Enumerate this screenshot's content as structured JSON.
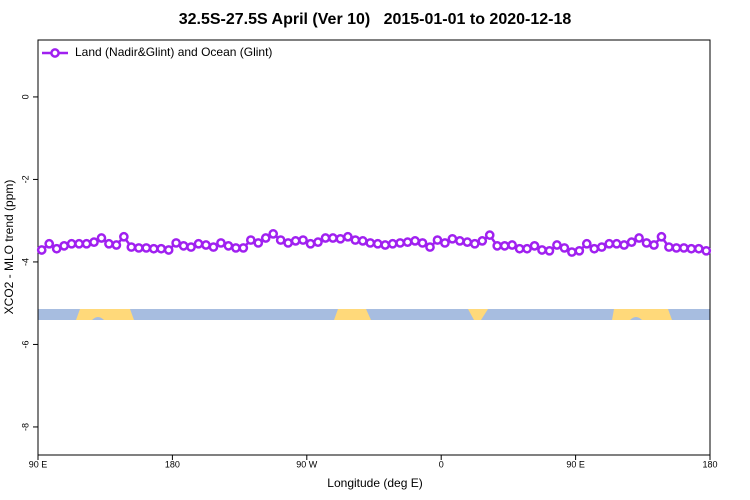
{
  "chart_data": {
    "type": "line",
    "title": "32.5S-27.5S April (Ver 10)   2015-01-01 to 2020-12-18",
    "xlabel": "Longitude (deg E)",
    "ylabel": "XCO2 - MLO trend (ppm)",
    "xlim": [
      90,
      540
    ],
    "xticks": [
      {
        "value": 90,
        "label": "90 E"
      },
      180,
      {
        "value": 270,
        "label": "90 W"
      },
      {
        "value": 360,
        "label": "0"
      },
      {
        "value": 450,
        "label": "90 E"
      },
      {
        "value": 540,
        "label": "180"
      }
    ],
    "ylim": [
      -8.68,
      1.38
    ],
    "yticks": [
      0,
      -2,
      -4,
      -6,
      -8
    ],
    "legend": "top-left",
    "x": [
      92.5,
      97.5,
      102.5,
      107.5,
      112.5,
      117.5,
      122.5,
      127.5,
      132.5,
      137.5,
      142.5,
      147.5,
      152.5,
      157.5,
      162.5,
      167.5,
      172.5,
      177.5,
      182.5,
      187.5,
      192.5,
      197.5,
      202.5,
      207.5,
      212.5,
      217.5,
      222.5,
      227.5,
      232.5,
      237.5,
      242.5,
      247.5,
      252.5,
      257.5,
      262.5,
      267.5,
      272.5,
      277.5,
      282.5,
      287.5,
      292.5,
      297.5,
      302.5,
      307.5,
      312.5,
      317.5,
      322.5,
      327.5,
      332.5,
      337.5,
      342.5,
      347.5,
      352.5,
      357.5,
      362.5,
      367.5,
      372.5,
      377.5,
      382.5,
      387.5,
      392.5,
      397.5,
      402.5,
      407.5,
      412.5,
      417.5,
      422.5,
      427.5,
      432.5,
      437.5,
      442.5,
      447.5,
      452.5,
      457.5,
      462.5,
      467.5,
      472.5,
      477.5,
      482.5,
      487.5,
      492.5,
      497.5,
      502.5,
      507.5,
      512.5,
      517.5,
      522.5,
      527.5,
      532.5,
      537.5
    ],
    "series": [
      {
        "name": "Land (Nadir&Glint) and Ocean (Glint)",
        "color": "#a020f0",
        "values": [
          -3.71,
          -3.56,
          -3.68,
          -3.61,
          -3.56,
          -3.56,
          -3.56,
          -3.52,
          -3.42,
          -3.56,
          -3.59,
          -3.39,
          -3.64,
          -3.66,
          -3.66,
          -3.68,
          -3.68,
          -3.71,
          -3.54,
          -3.61,
          -3.64,
          -3.56,
          -3.59,
          -3.64,
          -3.54,
          -3.61,
          -3.66,
          -3.66,
          -3.47,
          -3.54,
          -3.42,
          -3.32,
          -3.47,
          -3.54,
          -3.49,
          -3.47,
          -3.56,
          -3.52,
          -3.42,
          -3.42,
          -3.44,
          -3.39,
          -3.47,
          -3.49,
          -3.54,
          -3.56,
          -3.59,
          -3.56,
          -3.54,
          -3.52,
          -3.49,
          -3.54,
          -3.64,
          -3.47,
          -3.54,
          -3.44,
          -3.49,
          -3.52,
          -3.56,
          -3.49,
          -3.35,
          -3.61,
          -3.61,
          -3.59,
          -3.68,
          -3.68,
          -3.61,
          -3.71,
          -3.73,
          -3.59,
          -3.66,
          -3.76,
          -3.73,
          -3.56,
          -3.68,
          -3.64,
          -3.56,
          -3.56,
          -3.59,
          -3.52,
          -3.42,
          -3.54,
          -3.59,
          -3.39,
          -3.64,
          -3.66,
          -3.66,
          -3.68,
          -3.68,
          -3.73
        ]
      }
    ]
  }
}
